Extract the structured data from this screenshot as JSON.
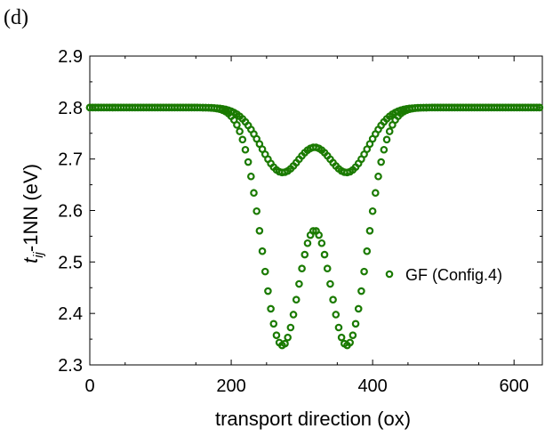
{
  "panel_label": "(d)",
  "chart_data": {
    "type": "scatter",
    "title": "",
    "xlabel": "transport direction (ox)",
    "ylabel_main": "t",
    "ylabel_sub": "ij",
    "ylabel_rest": "-1NN (eV)",
    "xlim": [
      0,
      640
    ],
    "ylim": [
      2.3,
      2.9
    ],
    "xticks": [
      0,
      200,
      400,
      600
    ],
    "yticks": [
      2.3,
      2.4,
      2.5,
      2.6,
      2.7,
      2.8,
      2.9
    ],
    "ytick_labels": [
      "2.3",
      "2.4",
      "2.5",
      "2.6",
      "2.7",
      "2.8",
      "2.9"
    ],
    "grid": false,
    "legend_placement": "center-right",
    "marker": "open-circle",
    "marker_color": "#1a7a00",
    "series": [
      {
        "name": "GF (Config.4)",
        "components": [
          {
            "baseline": 2.8,
            "dips": [
              {
                "center": 272,
                "depth": 0.46,
                "width": 28
              },
              {
                "center": 364,
                "depth": 0.46,
                "width": 28
              }
            ]
          },
          {
            "baseline": 2.8,
            "dips": [
              {
                "center": 272,
                "depth": 0.125,
                "width": 30
              },
              {
                "center": 364,
                "depth": 0.125,
                "width": 30
              }
            ]
          }
        ],
        "x_start": 0,
        "x_end": 636,
        "x_step": 4
      }
    ]
  }
}
